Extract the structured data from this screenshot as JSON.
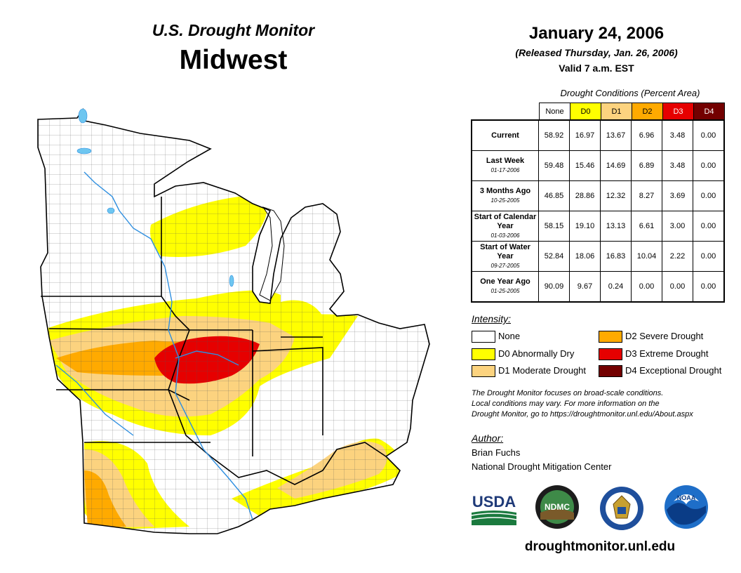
{
  "header": {
    "title": "U.S. Drought Monitor",
    "region": "Midwest",
    "date": "January 24, 2006",
    "released": "(Released Thursday, Jan. 26, 2006)",
    "valid": "Valid 7 a.m. EST"
  },
  "table": {
    "caption": "Drought Conditions (Percent Area)",
    "columns": [
      "None",
      "D0",
      "D1",
      "D2",
      "D3",
      "D4"
    ],
    "column_colors": [
      "#ffffff",
      "#ffff00",
      "#fcd37f",
      "#ffaa00",
      "#e60000",
      "#730000"
    ],
    "rows": [
      {
        "label": "Current",
        "date": "",
        "values": [
          "58.92",
          "16.97",
          "13.67",
          "6.96",
          "3.48",
          "0.00"
        ]
      },
      {
        "label": "Last Week",
        "date": "01-17-2006",
        "values": [
          "59.48",
          "15.46",
          "14.69",
          "6.89",
          "3.48",
          "0.00"
        ]
      },
      {
        "label": "3 Months Ago",
        "date": "10-25-2005",
        "values": [
          "46.85",
          "28.86",
          "12.32",
          "8.27",
          "3.69",
          "0.00"
        ]
      },
      {
        "label": "Start of Calendar Year",
        "date": "01-03-2006",
        "values": [
          "58.15",
          "19.10",
          "13.13",
          "6.61",
          "3.00",
          "0.00"
        ]
      },
      {
        "label": "Start of Water Year",
        "date": "09-27-2005",
        "values": [
          "52.84",
          "18.06",
          "16.83",
          "10.04",
          "2.22",
          "0.00"
        ]
      },
      {
        "label": "One Year Ago",
        "date": "01-25-2005",
        "values": [
          "90.09",
          "9.67",
          "0.24",
          "0.00",
          "0.00",
          "0.00"
        ]
      }
    ]
  },
  "legend": {
    "title": "Intensity:",
    "items": [
      {
        "label": "None",
        "color": "#ffffff"
      },
      {
        "label": "D0 Abnormally Dry",
        "color": "#ffff00"
      },
      {
        "label": "D1 Moderate Drought",
        "color": "#fcd37f"
      },
      {
        "label": "D2 Severe Drought",
        "color": "#ffaa00"
      },
      {
        "label": "D3 Extreme Drought",
        "color": "#e60000"
      },
      {
        "label": "D4 Exceptional Drought",
        "color": "#730000"
      }
    ]
  },
  "note": {
    "line1": "The Drought Monitor focuses on broad-scale conditions.",
    "line2": "Local conditions may vary. For more information on the",
    "line3": "Drought Monitor, go to https://droughtmonitor.unl.edu/About.aspx"
  },
  "author": {
    "title": "Author:",
    "name": "Brian Fuchs",
    "org": "National Drought Mitigation Center"
  },
  "logos": {
    "usda": "USDA",
    "ndmc": "NDMC",
    "noaa": "NOAA"
  },
  "website": "droughtmonitor.unl.edu"
}
